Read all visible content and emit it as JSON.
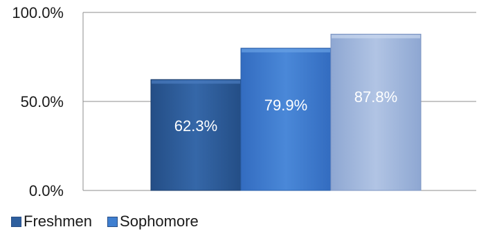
{
  "chart_data": {
    "type": "bar",
    "categories": [
      "",
      "",
      ""
    ],
    "values": [
      62.3,
      79.9,
      87.8
    ],
    "data_labels": [
      "62.3%",
      "79.9%",
      "87.8%"
    ],
    "bar_colors": [
      "#2e5f9e",
      "#3f7fd0",
      "#9fb6dc"
    ],
    "ylim": [
      0,
      100
    ],
    "yticks": [
      0,
      50,
      100
    ],
    "ytick_labels": [
      "0.0%",
      "50.0%",
      "100.0%"
    ],
    "grid": true,
    "legend_position": "bottom-left",
    "legend": [
      {
        "label": "Freshmen",
        "color": "#2e5f9e"
      },
      {
        "label": "Sophomore",
        "color": "#3f7fd0"
      }
    ],
    "xlabel": "",
    "ylabel": "",
    "title": ""
  }
}
